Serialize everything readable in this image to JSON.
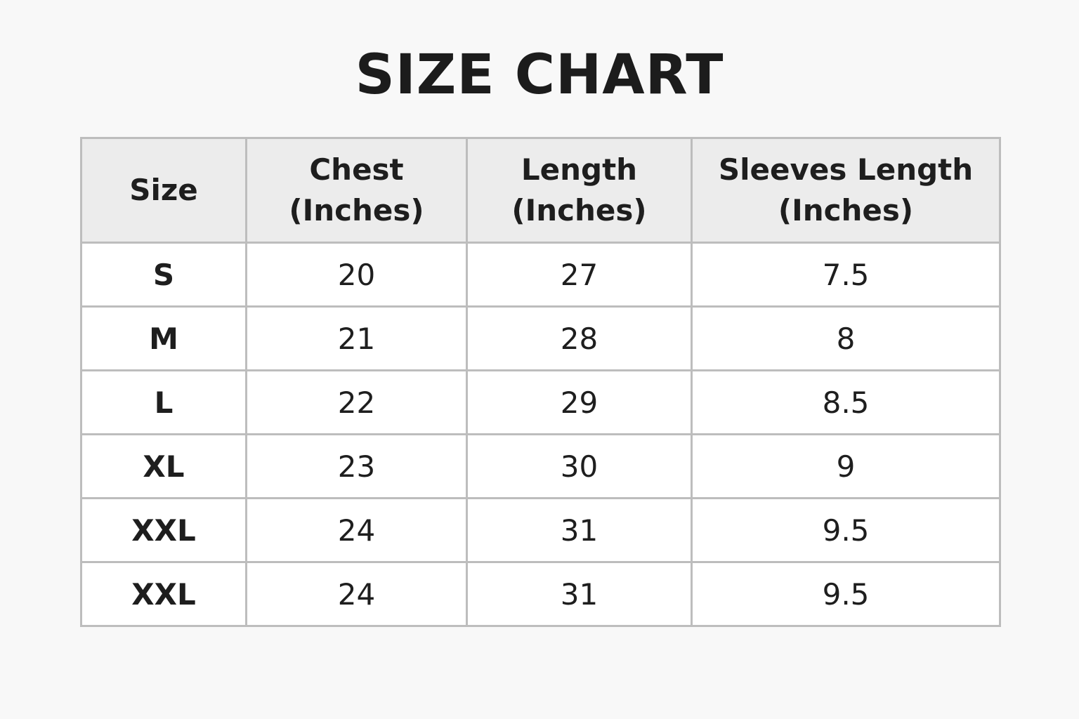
{
  "title": "SIZE CHART",
  "table": {
    "headers": [
      {
        "line1": "Size",
        "line2": ""
      },
      {
        "line1": "Chest",
        "line2": "(Inches)"
      },
      {
        "line1": "Length",
        "line2": "(Inches)"
      },
      {
        "line1": "Sleeves Length",
        "line2": "(Inches)"
      }
    ],
    "rows": [
      [
        "S",
        "20",
        "27",
        "7.5"
      ],
      [
        "M",
        "21",
        "28",
        "8"
      ],
      [
        "L",
        "22",
        "29",
        "8.5"
      ],
      [
        "XL",
        "23",
        "30",
        "9"
      ],
      [
        "XXL",
        "24",
        "31",
        "9.5"
      ],
      [
        "XXL",
        "24",
        "31",
        "9.5"
      ]
    ]
  },
  "colors": {
    "header_bg": "#ececec",
    "border": "#bdbdbd",
    "text": "#1e1e1e"
  }
}
